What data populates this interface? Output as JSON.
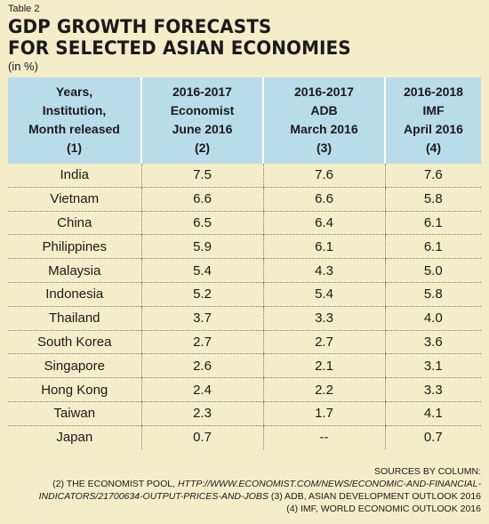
{
  "label": "Table 2",
  "title_line1": "GDP GROWTH FORECASTS",
  "title_line2": "FOR SELECTED ASIAN ECONOMIES",
  "unit": "(in %)",
  "headers": [
    [
      "Years,",
      "Institution,",
      "Month released",
      "(1)"
    ],
    [
      "2016-2017",
      "Economist",
      "June 2016",
      "(2)"
    ],
    [
      "2016-2017",
      "ADB",
      "March 2016",
      "(3)"
    ],
    [
      "2016-2018",
      "IMF",
      "April 2016",
      "(4)"
    ]
  ],
  "rows": [
    [
      "India",
      "7.5",
      "7.6",
      "7.6"
    ],
    [
      "Vietnam",
      "6.6",
      "6.6",
      "5.8"
    ],
    [
      "China",
      "6.5",
      "6.4",
      "6.1"
    ],
    [
      "Philippines",
      "5.9",
      "6.1",
      "6.1"
    ],
    [
      "Malaysia",
      "5.4",
      "4.3",
      "5.0"
    ],
    [
      "Indonesia",
      "5.2",
      "5.4",
      "5.8"
    ],
    [
      "Thailand",
      "3.7",
      "3.3",
      "4.0"
    ],
    [
      "South Korea",
      "2.7",
      "2.7",
      "3.6"
    ],
    [
      "Singapore",
      "2.6",
      "2.1",
      "3.1"
    ],
    [
      "Hong Kong",
      "2.4",
      "2.2",
      "3.3"
    ],
    [
      "Taiwan",
      "2.3",
      "1.7",
      "4.1"
    ],
    [
      "Japan",
      "0.7",
      "--",
      "0.7"
    ]
  ],
  "sources": {
    "heading": "Sources by column:",
    "line1_prefix": "(2) The Economist Pool, ",
    "line1_url": "http://www.economist.com/news/economic-and-financial-",
    "line2_url": "indicators/21700634-output-prices-and-jobs",
    "line2_suffix": " (3) ADB, Asian Development Outlook 2016",
    "line3": "(4) IMF, World Economic Outlook 2016"
  }
}
